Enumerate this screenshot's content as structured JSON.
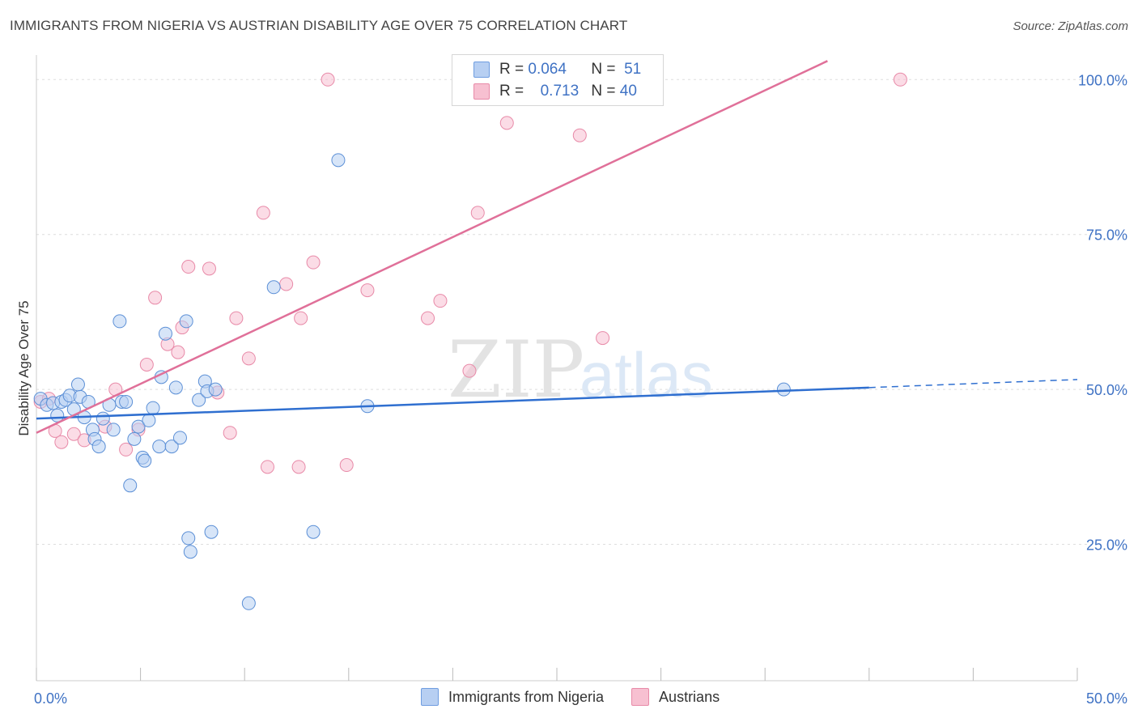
{
  "title": "IMMIGRANTS FROM NIGERIA VS AUSTRIAN DISABILITY AGE OVER 75 CORRELATION CHART",
  "source": "Source: ZipAtlas.com",
  "watermark": {
    "zip": "ZIP",
    "atlas": "atlas"
  },
  "legend_top": {
    "r_label": "R =",
    "n_label": "N =",
    "rows": [
      {
        "r": "0.064",
        "n": "51",
        "fill": "#b7cff2",
        "stroke": "#6f9de0"
      },
      {
        "r": "0.713",
        "n": "40",
        "fill": "#f7c0d1",
        "stroke": "#e88aa8"
      }
    ]
  },
  "colors": {
    "blue_point_fill": "#b7cff2",
    "blue_point_stroke": "#5b8fd6",
    "blue_line": "#2f6fd0",
    "pink_point_fill": "#f7c0d1",
    "pink_point_stroke": "#e88aa8",
    "pink_line": "#e07099",
    "axis_label": "#3f72c4",
    "grid": "#dedede"
  },
  "chart_data": {
    "type": "scatter",
    "ylabel": "Disability Age Over 75",
    "xlabel": "",
    "xlim": [
      0,
      50
    ],
    "ylim": [
      3,
      105
    ],
    "x_tick_labels": [
      {
        "value": 0,
        "label": "0.0%"
      },
      {
        "value": 50,
        "label": "50.0%"
      }
    ],
    "y_tick_labels": [
      {
        "value": 25,
        "label": "25.0%"
      },
      {
        "value": 50,
        "label": "50.0%"
      },
      {
        "value": 75,
        "label": "75.0%"
      },
      {
        "value": 100,
        "label": "100.0%"
      }
    ],
    "x_minor_ticks": [
      0,
      5,
      10,
      15,
      20,
      25,
      30,
      35,
      40,
      45,
      50
    ],
    "grid": true,
    "legend_position": "bottom",
    "series": [
      {
        "name": "Immigrants from Nigeria",
        "r": 0.064,
        "n": 51,
        "trend": {
          "x": [
            0,
            40
          ],
          "y": [
            45.3,
            50.3
          ],
          "dashed_to": {
            "x": 50,
            "y": 51.6
          }
        },
        "points": [
          [
            0.2,
            48.5
          ],
          [
            0.5,
            47.5
          ],
          [
            0.8,
            47.8
          ],
          [
            1.0,
            45.8
          ],
          [
            1.2,
            48.0
          ],
          [
            1.4,
            48.3
          ],
          [
            1.6,
            49.0
          ],
          [
            1.8,
            46.8
          ],
          [
            2.0,
            50.8
          ],
          [
            2.1,
            48.8
          ],
          [
            2.3,
            45.5
          ],
          [
            2.5,
            48.0
          ],
          [
            2.7,
            43.5
          ],
          [
            2.8,
            42.0
          ],
          [
            3.0,
            40.8
          ],
          [
            3.2,
            45.3
          ],
          [
            3.5,
            47.5
          ],
          [
            3.7,
            43.5
          ],
          [
            4.0,
            61.0
          ],
          [
            4.1,
            48.0
          ],
          [
            4.3,
            48.0
          ],
          [
            4.5,
            34.5
          ],
          [
            4.7,
            42.0
          ],
          [
            4.9,
            44.0
          ],
          [
            5.1,
            39.0
          ],
          [
            5.2,
            38.5
          ],
          [
            5.4,
            45.0
          ],
          [
            5.6,
            47.0
          ],
          [
            5.9,
            40.8
          ],
          [
            6.0,
            52.0
          ],
          [
            6.2,
            59.0
          ],
          [
            6.5,
            40.8
          ],
          [
            6.7,
            50.3
          ],
          [
            6.9,
            42.2
          ],
          [
            7.2,
            61.0
          ],
          [
            7.3,
            26.0
          ],
          [
            7.4,
            23.8
          ],
          [
            7.8,
            48.3
          ],
          [
            8.1,
            51.3
          ],
          [
            8.2,
            49.7
          ],
          [
            8.6,
            50.0
          ],
          [
            8.4,
            27.0
          ],
          [
            10.2,
            15.5
          ],
          [
            11.4,
            66.5
          ],
          [
            13.3,
            27.0
          ],
          [
            14.5,
            87.0
          ],
          [
            15.9,
            47.3
          ],
          [
            35.9,
            50.0
          ]
        ]
      },
      {
        "name": "Austrians",
        "r": 0.713,
        "n": 40,
        "trend": {
          "x": [
            0,
            38
          ],
          "y": [
            43.0,
            103.0
          ]
        },
        "points": [
          [
            0.2,
            48.0
          ],
          [
            0.6,
            48.5
          ],
          [
            0.9,
            43.3
          ],
          [
            1.2,
            41.5
          ],
          [
            1.8,
            42.8
          ],
          [
            2.3,
            41.8
          ],
          [
            3.3,
            44.0
          ],
          [
            3.8,
            50.0
          ],
          [
            4.3,
            40.3
          ],
          [
            4.9,
            43.5
          ],
          [
            5.3,
            54.0
          ],
          [
            5.7,
            64.8
          ],
          [
            6.3,
            57.3
          ],
          [
            6.8,
            56.0
          ],
          [
            7.0,
            60.0
          ],
          [
            7.3,
            69.8
          ],
          [
            8.3,
            69.5
          ],
          [
            8.7,
            49.5
          ],
          [
            9.3,
            43.0
          ],
          [
            9.6,
            61.5
          ],
          [
            10.2,
            55.0
          ],
          [
            10.9,
            78.5
          ],
          [
            11.1,
            37.5
          ],
          [
            12.0,
            67.0
          ],
          [
            12.6,
            37.5
          ],
          [
            12.7,
            61.5
          ],
          [
            13.3,
            70.5
          ],
          [
            14.0,
            100.0
          ],
          [
            14.9,
            37.8
          ],
          [
            15.9,
            66.0
          ],
          [
            18.8,
            61.5
          ],
          [
            19.4,
            64.3
          ],
          [
            20.8,
            53.0
          ],
          [
            21.2,
            78.5
          ],
          [
            22.6,
            93.0
          ],
          [
            26.1,
            91.0
          ],
          [
            26.3,
            100.0
          ],
          [
            27.2,
            58.3
          ],
          [
            29.8,
            100.0
          ],
          [
            41.5,
            100.0
          ]
        ]
      }
    ]
  }
}
